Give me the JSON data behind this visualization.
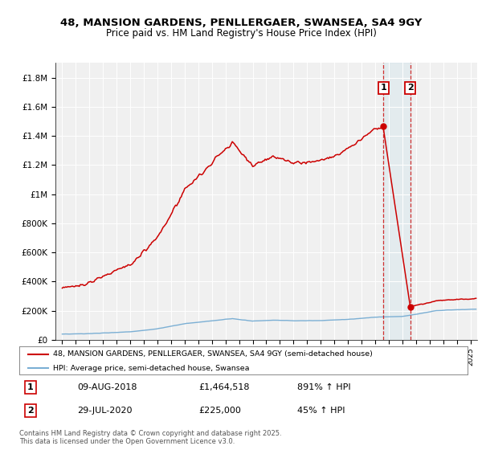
{
  "title1": "48, MANSION GARDENS, PENLLERGAER, SWANSEA, SA4 9GY",
  "title2": "Price paid vs. HM Land Registry's House Price Index (HPI)",
  "legend_line1": "48, MANSION GARDENS, PENLLERGAER, SWANSEA, SA4 9GY (semi-detached house)",
  "legend_line2": "HPI: Average price, semi-detached house, Swansea",
  "hpi_color": "#7bafd4",
  "price_color": "#cc0000",
  "marker1_date": 2018.608,
  "marker1_price": 1464518,
  "marker1_text": "09-AUG-2018",
  "marker1_value": "£1,464,518",
  "marker1_hpi": "891% ↑ HPI",
  "marker2_date": 2020.578,
  "marker2_price": 225000,
  "marker2_text": "29-JUL-2020",
  "marker2_value": "£225,000",
  "marker2_hpi": "45% ↑ HPI",
  "footer": "Contains HM Land Registry data © Crown copyright and database right 2025.\nThis data is licensed under the Open Government Licence v3.0.",
  "ylim": [
    0,
    1900000
  ],
  "xlim": [
    1994.5,
    2025.5
  ],
  "background_color": "#ffffff",
  "plot_bg_color": "#f0f0f0"
}
